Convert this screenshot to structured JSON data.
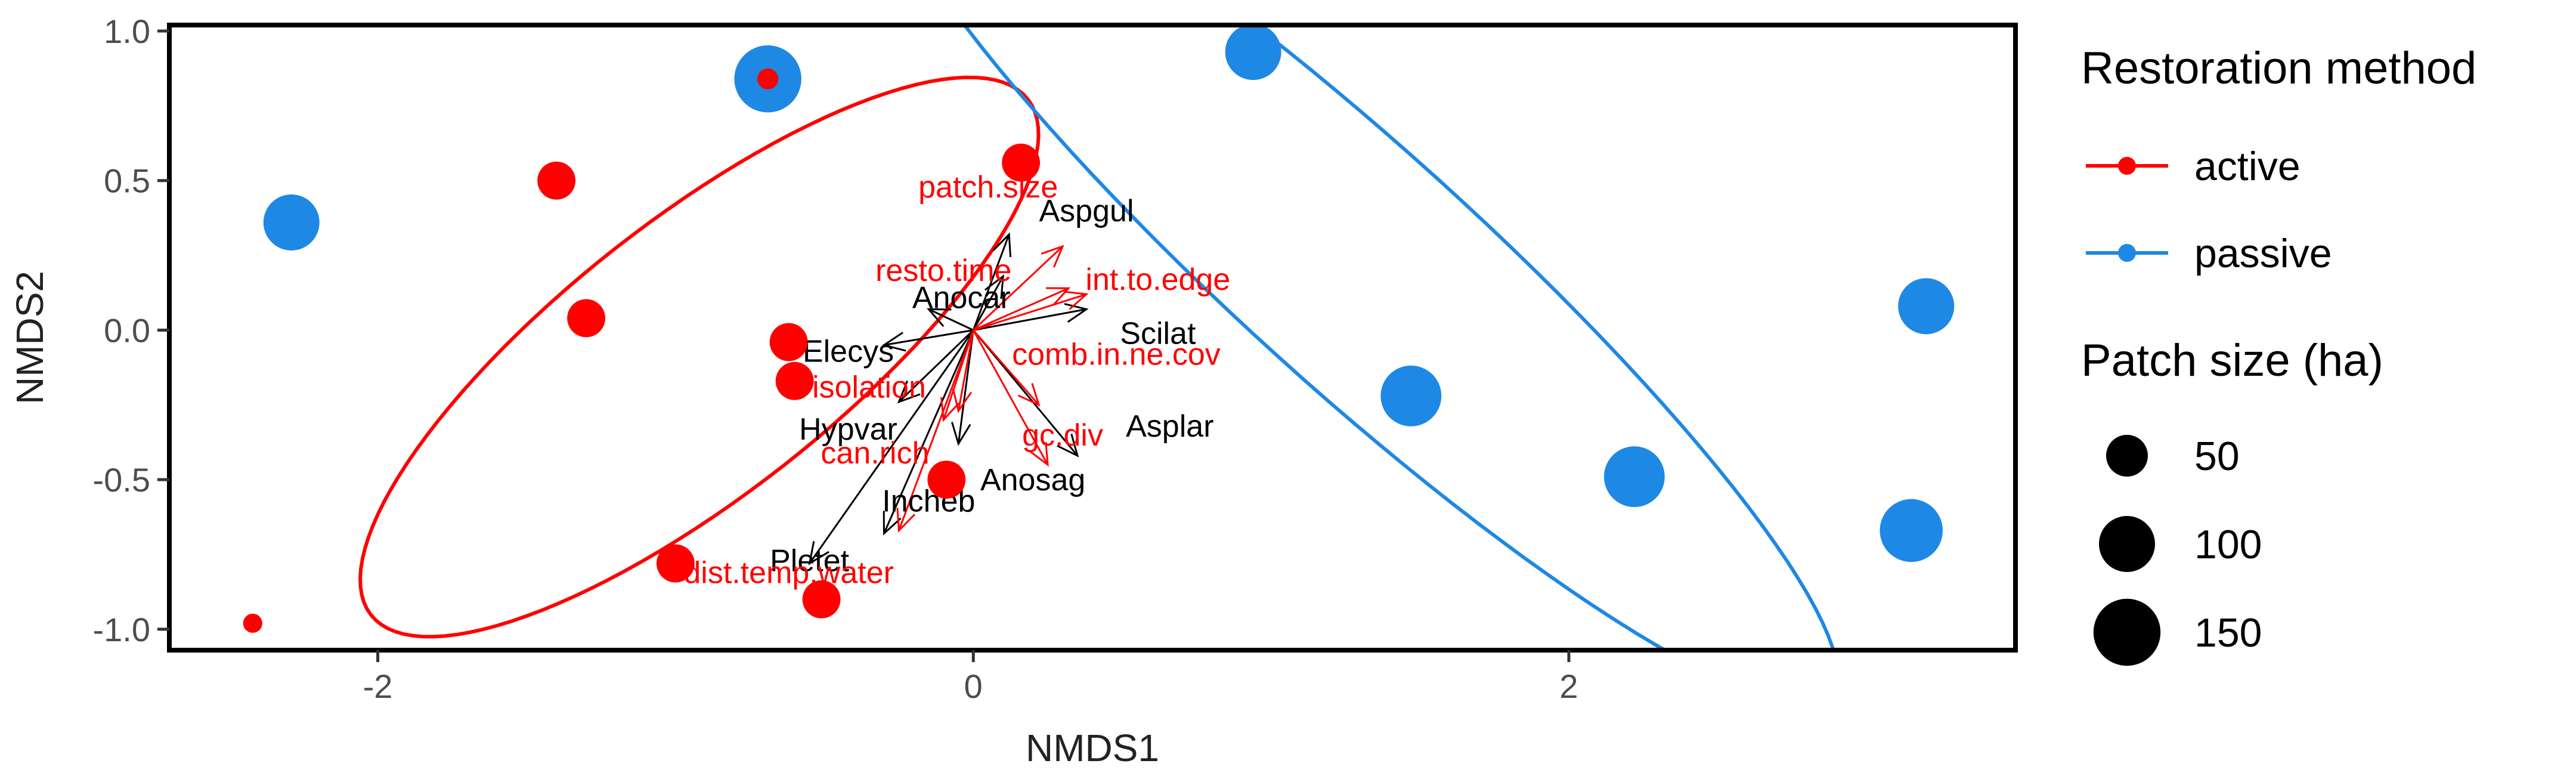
{
  "chart_data": {
    "type": "scatter",
    "title": "",
    "xlabel": "NMDS1",
    "ylabel": "NMDS2",
    "xlim": [
      -2.7,
      3.5
    ],
    "ylim": [
      -1.07,
      1.02
    ],
    "x_ticks": [
      -2,
      0,
      2
    ],
    "y_ticks": [
      -1.0,
      -0.5,
      0.0,
      0.5,
      1.0
    ],
    "x_tick_labels": [
      "-2",
      "0",
      "2"
    ],
    "y_tick_labels": [
      "-1.0",
      "-0.5",
      "0.0",
      "0.5",
      "1.0"
    ],
    "grid": false,
    "legend_position": "right",
    "colors": {
      "active": "#ff0000",
      "passive": "#1e88e5",
      "species": "#000000"
    },
    "legend": {
      "color_title": "Restoration method",
      "color_items": [
        {
          "label": "active",
          "color": "#ff0000"
        },
        {
          "label": "passive",
          "color": "#1e88e5"
        }
      ],
      "size_title": "Patch size (ha)",
      "size_items": [
        {
          "label": "50",
          "value": 50
        },
        {
          "label": "100",
          "value": 100
        },
        {
          "label": "150",
          "value": 150
        }
      ]
    },
    "series": [
      {
        "name": "active",
        "color": "#ff0000",
        "points": [
          {
            "x": -0.69,
            "y": 0.84,
            "size": 8
          },
          {
            "x": -1.4,
            "y": 0.5,
            "size": 40
          },
          {
            "x": -1.3,
            "y": 0.04,
            "size": 40
          },
          {
            "x": -0.62,
            "y": -0.04,
            "size": 40
          },
          {
            "x": -0.6,
            "y": -0.17,
            "size": 40
          },
          {
            "x": 0.16,
            "y": 0.56,
            "size": 40
          },
          {
            "x": -0.09,
            "y": -0.5,
            "size": 40
          },
          {
            "x": -1.0,
            "y": -0.78,
            "size": 40
          },
          {
            "x": -0.51,
            "y": -0.9,
            "size": 40
          },
          {
            "x": -2.42,
            "y": -0.98,
            "size": 6
          }
        ]
      },
      {
        "name": "passive",
        "color": "#1e88e5",
        "points": [
          {
            "x": -0.69,
            "y": 0.84,
            "size": 150
          },
          {
            "x": -2.29,
            "y": 0.36,
            "size": 100
          },
          {
            "x": 0.94,
            "y": 0.93,
            "size": 100
          },
          {
            "x": 3.2,
            "y": 0.08,
            "size": 100
          },
          {
            "x": 1.47,
            "y": -0.22,
            "size": 120
          },
          {
            "x": 2.22,
            "y": -0.49,
            "size": 120
          },
          {
            "x": 3.15,
            "y": -0.67,
            "size": 130
          }
        ]
      }
    ],
    "ellipses": [
      {
        "group": "active",
        "color": "#ff0000",
        "cx": -0.92,
        "cy": -0.09,
        "rx": 1.4,
        "ry": 0.46,
        "angle_deg": 38
      },
      {
        "group": "passive",
        "color": "#1e88e5",
        "cx": 1.29,
        "cy": 0.21,
        "rx": 2.14,
        "ry": 0.4,
        "angle_deg": -42
      }
    ],
    "vectors": {
      "origin": [
        0,
        0
      ],
      "species": [
        {
          "label": "Aspgul",
          "x": 0.12,
          "y": 0.32,
          "label_x": 0.38,
          "label_y": 0.4
        },
        {
          "label": "Anocar",
          "x": -0.15,
          "y": 0.07,
          "label_x": -0.04,
          "label_y": 0.11
        },
        {
          "label": "Scilat",
          "x": 0.38,
          "y": 0.07,
          "label_x": 0.62,
          "label_y": -0.01
        },
        {
          "label": "Elecys",
          "x": -0.3,
          "y": -0.05,
          "label_x": -0.42,
          "label_y": -0.07
        },
        {
          "label": "Hypvar",
          "x": -0.25,
          "y": -0.24,
          "label_x": -0.42,
          "label_y": -0.33
        },
        {
          "label": "Asplar",
          "x": 0.35,
          "y": -0.42,
          "label_x": 0.66,
          "label_y": -0.32
        },
        {
          "label": "Anosag",
          "x": -0.05,
          "y": -0.38,
          "label_x": 0.2,
          "label_y": -0.5
        },
        {
          "label": "Incheb",
          "x": -0.3,
          "y": -0.68,
          "label_x": -0.15,
          "label_y": -0.57
        },
        {
          "label": "Pletet",
          "x": -0.55,
          "y": -0.78,
          "label_x": -0.55,
          "label_y": -0.77
        },
        {
          "label": "Anocar",
          "x": 0.1,
          "y": 0.18,
          "label_x": null,
          "label_y": null
        }
      ],
      "environment": [
        {
          "label": "patch.size",
          "x": 0.3,
          "y": 0.28,
          "label_x": 0.05,
          "label_y": 0.48
        },
        {
          "label": "resto.time",
          "x": 0.32,
          "y": 0.14,
          "label_x": -0.1,
          "label_y": 0.2
        },
        {
          "label": "int.to.edge",
          "x": 0.38,
          "y": 0.12,
          "label_x": 0.62,
          "label_y": 0.17
        },
        {
          "label": "comb.in.ne.cov",
          "x": 0.22,
          "y": -0.25,
          "label_x": 0.48,
          "label_y": -0.08
        },
        {
          "label": "isolation",
          "x": -0.05,
          "y": -0.27,
          "label_x": -0.35,
          "label_y": -0.19
        },
        {
          "label": "gc.div",
          "x": 0.25,
          "y": -0.45,
          "label_x": 0.3,
          "label_y": -0.35
        },
        {
          "label": "can.rich",
          "x": -0.1,
          "y": -0.3,
          "label_x": -0.33,
          "label_y": -0.41
        },
        {
          "label": "dist.temp.water",
          "x": -0.25,
          "y": -0.67,
          "label_x": -0.62,
          "label_y": -0.81
        }
      ]
    }
  }
}
